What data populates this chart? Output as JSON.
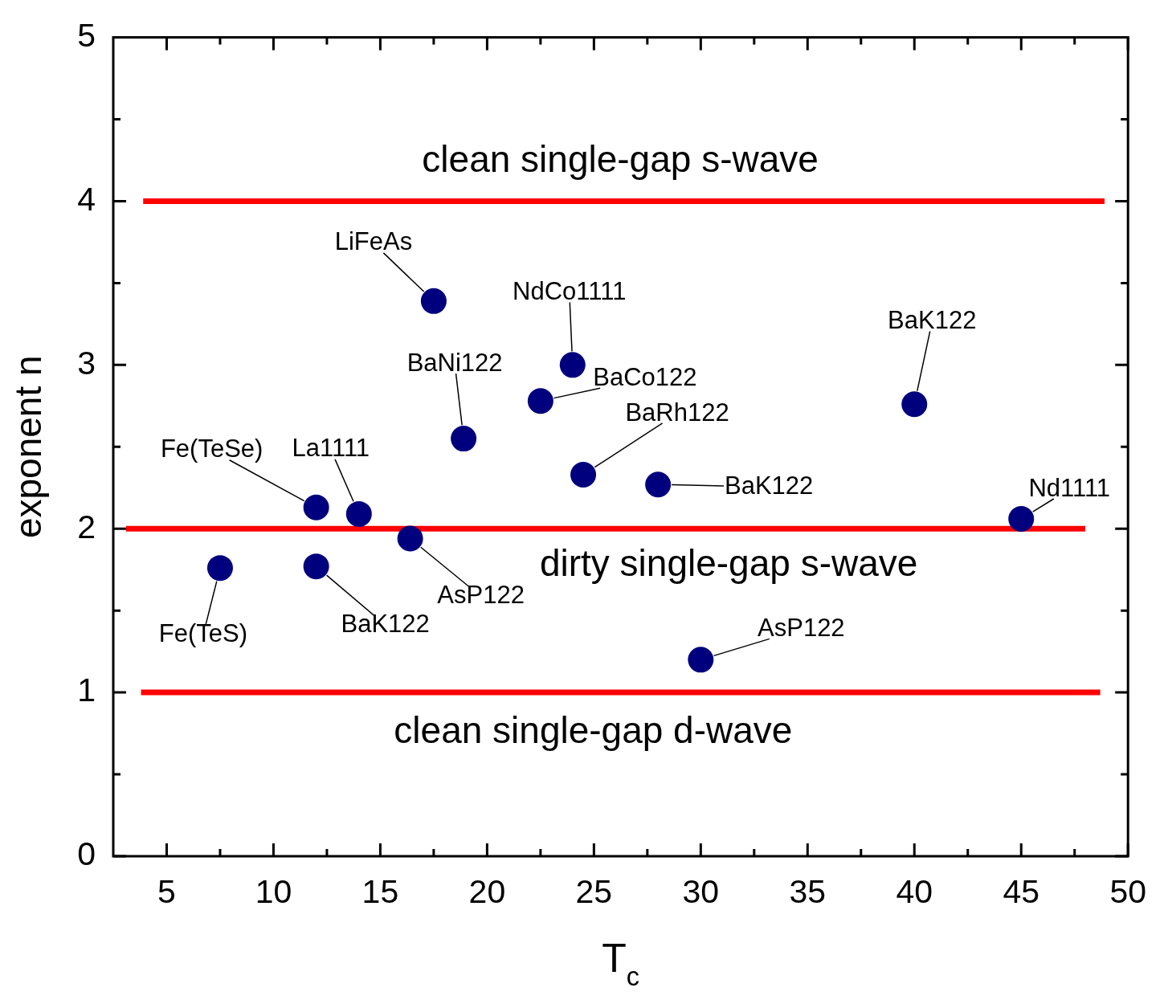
{
  "chart_data": {
    "type": "scatter",
    "xlabel": "T$_{c}$",
    "ylabel": "exponent n",
    "xlim": [
      2.5,
      50
    ],
    "ylim": [
      0,
      5
    ],
    "xticks": [
      5,
      {
        "value": 7.5,
        "label": null
      },
      10,
      {
        "value": 12.5,
        "label": null
      },
      15,
      {
        "value": 17.5,
        "label": null
      },
      20,
      {
        "value": 22.5,
        "label": null
      },
      25,
      {
        "value": 27.5,
        "label": null
      },
      30,
      {
        "value": 32.5,
        "label": null
      },
      35,
      {
        "value": 37.5,
        "label": null
      },
      40,
      {
        "value": 42.5,
        "label": null
      },
      45,
      {
        "value": 47.5,
        "label": null
      },
      50
    ],
    "yticks": [
      0,
      {
        "value": 0.5,
        "label": null
      },
      1,
      {
        "value": 1.5,
        "label": null
      },
      2,
      {
        "value": 2.5,
        "label": null
      },
      3,
      {
        "value": 3.5,
        "label": null
      },
      4,
      {
        "value": 4.5,
        "label": null
      },
      5
    ],
    "legend": false,
    "marker": "circle",
    "series": [
      {
        "color": "#00007f",
        "x": [
          7.5,
          12,
          12,
          14,
          16.4,
          17.5,
          18.9,
          22.5,
          24,
          24.5,
          28,
          30,
          40,
          45
        ],
        "values": [
          1.76,
          1.77,
          2.13,
          2.09,
          1.94,
          3.39,
          2.55,
          2.78,
          3.0,
          2.33,
          2.27,
          1.2,
          2.76,
          2.06
        ]
      },
      {
        "type": "line",
        "color": "#ff0000",
        "line_style": "solid",
        "marker": "none",
        "x": [
          3.9,
          48.9
        ],
        "values": [
          4,
          4
        ]
      },
      {
        "type": "line",
        "color": "#ff0000",
        "line_style": "solid",
        "marker": "none",
        "x": [
          3.1,
          48.0
        ],
        "values": [
          2,
          2
        ]
      },
      {
        "type": "line",
        "color": "#ff0000",
        "line_style": "solid",
        "marker": "none",
        "x": [
          3.8,
          48.7
        ],
        "values": [
          1,
          1
        ]
      }
    ],
    "annotations": [
      {
        "text": "Fe(TeS)",
        "x": 7.5,
        "y": 1.76
      },
      {
        "text": "BaK122",
        "x": 12,
        "y": 1.77
      },
      {
        "text": "Fe(TeSe)",
        "x": 12,
        "y": 2.13
      },
      {
        "text": "La1111",
        "x": 14,
        "y": 2.09
      },
      {
        "text": "AsP122",
        "x": 16.4,
        "y": 1.94
      },
      {
        "text": "LiFeAs",
        "x": 17.5,
        "y": 3.39
      },
      {
        "text": "BaNi122",
        "x": 18.9,
        "y": 2.55
      },
      {
        "text": "BaCo122",
        "x": 22.5,
        "y": 2.78
      },
      {
        "text": "NdCo1111",
        "x": 24,
        "y": 3.0
      },
      {
        "text": "BaRh122",
        "x": 24.5,
        "y": 2.33
      },
      {
        "text": "BaK122",
        "x": 28,
        "y": 2.27
      },
      {
        "text": "AsP122",
        "x": 30,
        "y": 1.2
      },
      {
        "text": "BaK122",
        "x": 40,
        "y": 2.76
      },
      {
        "text": "Nd1111",
        "x": 45,
        "y": 2.06
      },
      "clean single-gap s-wave",
      "dirty single-gap s-wave",
      "clean single-gap d-wave"
    ]
  }
}
